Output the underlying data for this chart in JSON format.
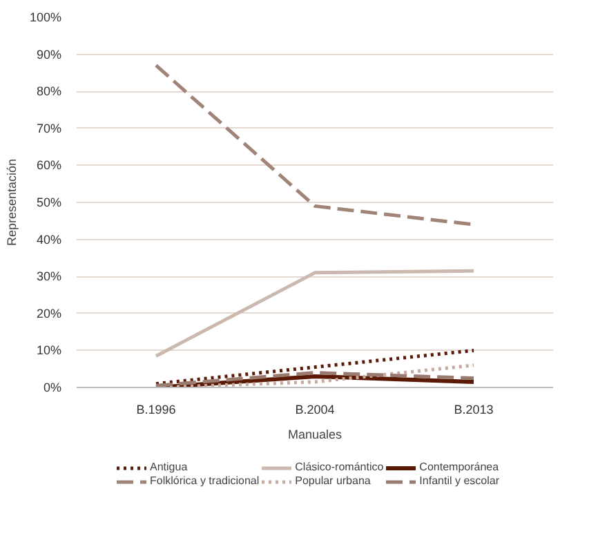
{
  "chart_data": {
    "type": "line",
    "xlabel": "Manuales",
    "ylabel": "Representación",
    "categories": [
      "B.1996",
      "B.2004",
      "B.2013"
    ],
    "ylim": [
      0,
      100
    ],
    "yticks": [
      {
        "value": 0,
        "label": "0%"
      },
      {
        "value": 10,
        "label": "10%"
      },
      {
        "value": 20,
        "label": "20%"
      },
      {
        "value": 30,
        "label": "30%"
      },
      {
        "value": 40,
        "label": "40%"
      },
      {
        "value": 50,
        "label": "50%"
      },
      {
        "value": 60,
        "label": "60%"
      },
      {
        "value": 70,
        "label": "70%"
      },
      {
        "value": 80,
        "label": "80%"
      },
      {
        "value": 90,
        "label": "90%"
      },
      {
        "value": 100,
        "label": "100%"
      }
    ],
    "grid": "y",
    "legend": "bottom",
    "series": [
      {
        "name": "Antigua",
        "color": "#5a1a0a",
        "line_style": "dotted",
        "values": [
          1,
          5.5,
          10
        ]
      },
      {
        "name": "Clásico-romántico",
        "color": "#cbb8ae",
        "line_style": "solid",
        "values": [
          8.5,
          31,
          31.5
        ]
      },
      {
        "name": "Contemporánea",
        "color": "#5a1a05",
        "line_style": "solid",
        "values": [
          0,
          3,
          1.5
        ]
      },
      {
        "name": "Folklórica y tradicional",
        "color": "#a08478",
        "line_style": "dashed",
        "values": [
          87,
          49,
          44
        ]
      },
      {
        "name": "Popular urbana",
        "color": "#c8aaa0",
        "line_style": "dotted",
        "values": [
          0,
          1.5,
          6
        ]
      },
      {
        "name": "Infantil y escolar",
        "color": "#9a7b70",
        "line_style": "dashed",
        "values": [
          0.5,
          4,
          2.5
        ]
      }
    ]
  }
}
